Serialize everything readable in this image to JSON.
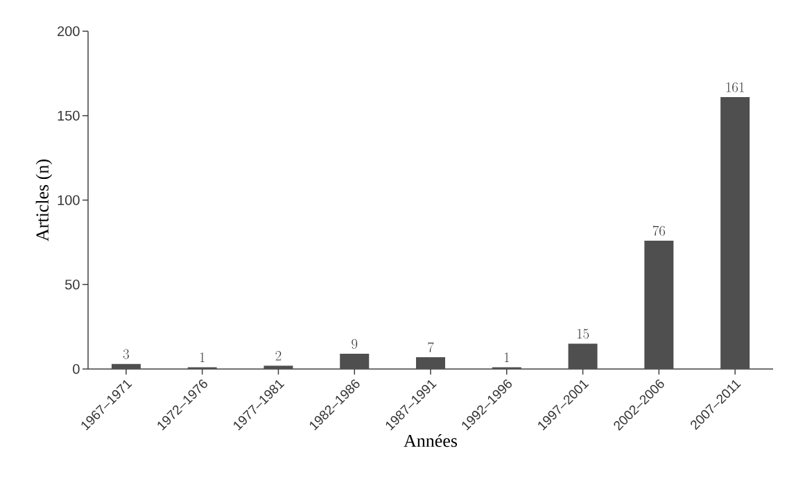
{
  "chart_data": {
    "type": "bar",
    "xlabel": "Années",
    "ylabel": "Articles (n)",
    "categories": [
      "1967–1971",
      "1972–1976",
      "1977–1981",
      "1982–1986",
      "1987–1991",
      "1992–1996",
      "1997–2001",
      "2002–2006",
      "2007–2011"
    ],
    "values": [
      3,
      1,
      2,
      9,
      7,
      1,
      15,
      76,
      161
    ],
    "color": "#4f4f4f",
    "ylim": [
      0,
      200
    ],
    "yticks": [
      0,
      50,
      100,
      150,
      200
    ],
    "data_labels": true
  }
}
